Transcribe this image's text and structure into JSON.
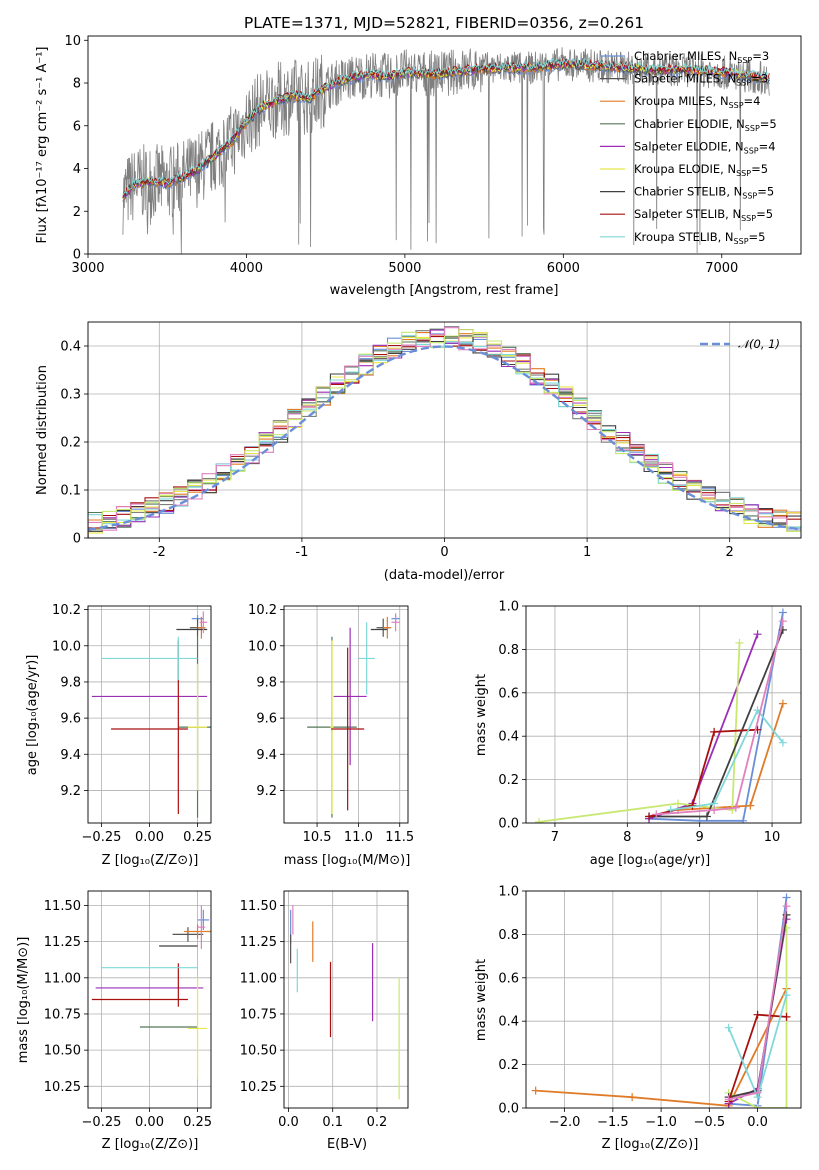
{
  "colors": [
    "#6a8fd8",
    "#7f7f7f",
    "#e07b28",
    "#55775a",
    "#9b2fb8",
    "#e8e84a",
    "#404040",
    "#a81010",
    "#80d8d8",
    "#e080c0",
    "#c8e870"
  ],
  "chart_data": [
    {
      "id": "spectrum",
      "type": "line",
      "title": "PLATE=1371, MJD=52821, FIBERID=0356, z=0.261",
      "xlabel": "wavelength [Angstrom, rest frame]",
      "ylabel": "Flux [fλ10⁻¹⁷ erg cm⁻² s⁻¹ A⁻¹]",
      "xlim": [
        3000,
        7500
      ],
      "ylim": [
        0,
        10.2
      ],
      "xticks": [
        3000,
        4000,
        5000,
        6000,
        7000
      ],
      "yticks": [
        0,
        2,
        4,
        6,
        8,
        10
      ],
      "data_range": [
        3220,
        7300
      ],
      "legend_position": "upper right",
      "legend": [
        {
          "label": "Chabrier MILES, N_SSP=3",
          "color": "#6a8fd8"
        },
        {
          "label": "Salpeter MILES, N_SSP=3",
          "color": "#555555"
        },
        {
          "label": "Kroupa MILES, N_SSP=4",
          "color": "#e07b28"
        },
        {
          "label": "Chabrier ELODIE, N_SSP=5",
          "color": "#55775a"
        },
        {
          "label": "Salpeter ELODIE, N_SSP=4",
          "color": "#9b2fb8"
        },
        {
          "label": "Kroupa ELODIE, N_SSP=5",
          "color": "#e8e84a"
        },
        {
          "label": "Chabrier STELIB, N_SSP=5",
          "color": "#404040"
        },
        {
          "label": "Salpeter STELIB, N_SSP=5",
          "color": "#a81010"
        },
        {
          "label": "Kroupa STELIB, N_SSP=5",
          "color": "#80d8d8"
        }
      ],
      "legend_texts": [
        {
          "pre": "Chabrier MILES, N",
          "sub": "SSP",
          "post": "=3"
        },
        {
          "pre": "Salpeter MILES, N",
          "sub": "SSP",
          "post": "=3"
        },
        {
          "pre": "Kroupa MILES, N",
          "sub": "SSP",
          "post": "=4"
        },
        {
          "pre": "Chabrier ELODIE, N",
          "sub": "SSP",
          "post": "=5"
        },
        {
          "pre": "Salpeter ELODIE, N",
          "sub": "SSP",
          "post": "=4"
        },
        {
          "pre": "Kroupa ELODIE, N",
          "sub": "SSP",
          "post": "=5"
        },
        {
          "pre": "Chabrier STELIB, N",
          "sub": "SSP",
          "post": "=5"
        },
        {
          "pre": "Salpeter STELIB, N",
          "sub": "SSP",
          "post": "=5"
        },
        {
          "pre": "Kroupa STELIB, N",
          "sub": "SSP",
          "post": "=5"
        }
      ],
      "model_curve": {
        "x": [
          3220,
          3300,
          3400,
          3500,
          3600,
          3700,
          3800,
          3900,
          4000,
          4100,
          4200,
          4300,
          4400,
          4500,
          4600,
          4700,
          4800,
          4900,
          5000,
          5200,
          5400,
          5600,
          5800,
          6000,
          6200,
          6400,
          6600,
          6800,
          7000,
          7200,
          7300
        ],
        "y": [
          2.7,
          3.3,
          3.4,
          3.3,
          3.6,
          4.0,
          4.6,
          5.2,
          6.2,
          6.9,
          7.2,
          7.4,
          7.3,
          7.8,
          8.1,
          8.3,
          8.4,
          8.3,
          8.5,
          8.4,
          8.6,
          8.7,
          8.7,
          8.9,
          8.8,
          8.7,
          8.6,
          8.6,
          8.5,
          8.3,
          8.2
        ]
      }
    },
    {
      "id": "residuals",
      "type": "histogram",
      "xlabel": "(data-model)/error",
      "ylabel": "Normed distribution",
      "xlim": [
        -2.5,
        2.5
      ],
      "ylim": [
        0,
        0.45
      ],
      "xticks": [
        -2,
        -1,
        0,
        1,
        2
      ],
      "yticks": [
        0.0,
        0.1,
        0.2,
        0.3,
        0.4
      ],
      "bin_width": 0.1,
      "bin_start": -2.5,
      "bin_count": 50,
      "legend_position": "upper right",
      "legend": [
        {
          "label": "𝒩(0, 1)",
          "color": "#6a8fd8",
          "style": "dashed"
        }
      ],
      "reference_curve": "normal(0,1)"
    },
    {
      "id": "age-vs-z",
      "type": "errorbar",
      "xlabel": "Z [log₁₀(Z/Z⊙)]",
      "ylabel": "age  [log₁₀(age/yr)]",
      "xlim": [
        -0.32,
        0.32
      ],
      "ylim": [
        9.02,
        10.22
      ],
      "xticks": [
        -0.25,
        0.0,
        0.25
      ],
      "xtick_labels": [
        "−0.25",
        "0.00",
        "0.25"
      ],
      "yticks": [
        9.2,
        9.4,
        9.6,
        9.8,
        10.0,
        10.2
      ],
      "ytick_labels": [
        "9.2",
        "9.4",
        "9.6",
        "9.8",
        "10.0",
        "10.2"
      ],
      "points": [
        {
          "x": 0.25,
          "y": 10.15,
          "xerr": 0.03,
          "yerr": 0.02,
          "color": "#6a8fd8"
        },
        {
          "x": 0.25,
          "y": 10.1,
          "xerr": 0.04,
          "yerr": 0.05,
          "color": "#555555"
        },
        {
          "x": 0.27,
          "y": 10.1,
          "xerr": 0.02,
          "yerr": 0.06,
          "color": "#e07b28"
        },
        {
          "x": 0.25,
          "y": 9.55,
          "xerr": 0.1,
          "yerr": 0.5,
          "color": "#55775a"
        },
        {
          "x": 0.0,
          "y": 9.72,
          "xerr": 0.3,
          "yerr": 0.0,
          "color": "#9b2fb8"
        },
        {
          "x": 0.25,
          "y": 9.55,
          "xerr": 0.05,
          "yerr": 0.35,
          "color": "#e8e84a"
        },
        {
          "x": 0.22,
          "y": 10.09,
          "xerr": 0.08,
          "yerr": 0.0,
          "color": "#404040"
        },
        {
          "x": 0.0,
          "y": 9.54,
          "xerr": 0.2,
          "yerr": 0.0,
          "color": "#a81010"
        },
        {
          "x": 0.15,
          "y": 9.55,
          "xerr": 0.0,
          "yerr": 0.48,
          "color": "#a81010"
        },
        {
          "x": 0.0,
          "y": 9.93,
          "xerr": 0.25,
          "yerr": 0.0,
          "color": "#80d8d8"
        },
        {
          "x": 0.15,
          "y": 9.93,
          "xerr": 0.0,
          "yerr": 0.12,
          "color": "#80d8d8"
        },
        {
          "x": 0.28,
          "y": 10.13,
          "xerr": 0.02,
          "yerr": 0.06,
          "color": "#e080c0"
        }
      ]
    },
    {
      "id": "age-vs-mass",
      "type": "errorbar",
      "xlabel": "mass [log₁₀(M/M⊙)]",
      "ylabel": "",
      "xlim": [
        10.1,
        11.6
      ],
      "ylim": [
        9.02,
        10.22
      ],
      "xticks": [
        10.5,
        11.0,
        11.5
      ],
      "xtick_labels": [
        "10.5",
        "11.0",
        "11.5"
      ],
      "yticks": [
        9.2,
        9.4,
        9.6,
        9.8,
        10.0,
        10.2
      ],
      "ytick_labels": [
        "9.2",
        "9.4",
        "9.6",
        "9.8",
        "10.0",
        "10.2"
      ],
      "points": [
        {
          "x": 11.45,
          "y": 10.15,
          "xerr": 0.05,
          "yerr": 0.02,
          "color": "#6a8fd8"
        },
        {
          "x": 11.3,
          "y": 10.1,
          "xerr": 0.08,
          "yerr": 0.05,
          "color": "#555555"
        },
        {
          "x": 11.35,
          "y": 10.1,
          "xerr": 0.05,
          "yerr": 0.06,
          "color": "#e07b28"
        },
        {
          "x": 10.68,
          "y": 9.55,
          "xerr": 0.3,
          "yerr": 0.5,
          "color": "#55775a"
        },
        {
          "x": 10.9,
          "y": 9.72,
          "xerr": 0.2,
          "yerr": 0.38,
          "color": "#9b2fb8"
        },
        {
          "x": 10.68,
          "y": 9.55,
          "xerr": 0.02,
          "yerr": 0.48,
          "color": "#e8e84a"
        },
        {
          "x": 11.25,
          "y": 10.09,
          "xerr": 0.1,
          "yerr": 0.0,
          "color": "#404040"
        },
        {
          "x": 10.87,
          "y": 9.54,
          "xerr": 0.2,
          "yerr": 0.45,
          "color": "#a81010"
        },
        {
          "x": 11.1,
          "y": 9.93,
          "xerr": 0.1,
          "yerr": 0.2,
          "color": "#80d8d8"
        },
        {
          "x": 11.45,
          "y": 10.13,
          "xerr": 0.05,
          "yerr": 0.05,
          "color": "#e080c0"
        }
      ]
    },
    {
      "id": "weight-vs-age",
      "type": "line",
      "xlabel": "age  [log₁₀(age/yr)]",
      "ylabel": "mass weight",
      "xlim": [
        6.6,
        10.4
      ],
      "ylim": [
        0,
        1
      ],
      "xticks": [
        7,
        8,
        9,
        10
      ],
      "xtick_labels": [
        "7",
        "8",
        "9",
        "10"
      ],
      "yticks": [
        0.0,
        0.2,
        0.4,
        0.6,
        0.8,
        1.0
      ],
      "ytick_labels": [
        "0.0",
        "0.2",
        "0.4",
        "0.6",
        "0.8",
        "1.0"
      ],
      "series": [
        {
          "color": "#6a8fd8",
          "x": [
            8.3,
            9.0,
            9.6,
            10.15
          ],
          "y": [
            0.02,
            0.01,
            0.01,
            0.97
          ]
        },
        {
          "color": "#e07b28",
          "x": [
            8.7,
            9.7,
            10.15
          ],
          "y": [
            0.06,
            0.08,
            0.55
          ]
        },
        {
          "color": "#9b2fb8",
          "x": [
            8.3,
            8.9,
            9.8
          ],
          "y": [
            0.02,
            0.09,
            0.87
          ]
        },
        {
          "color": "#c8e870",
          "x": [
            6.78,
            8.7,
            9.45,
            9.55
          ],
          "y": [
            0.005,
            0.09,
            0.06,
            0.83
          ]
        },
        {
          "color": "#404040",
          "x": [
            8.3,
            9.1,
            10.15
          ],
          "y": [
            0.03,
            0.03,
            0.89
          ]
        },
        {
          "color": "#a81010",
          "x": [
            8.3,
            8.9,
            9.2,
            9.8
          ],
          "y": [
            0.03,
            0.08,
            0.42,
            0.43
          ]
        },
        {
          "color": "#80d8d8",
          "x": [
            8.6,
            9.2,
            9.8,
            10.15
          ],
          "y": [
            0.06,
            0.09,
            0.52,
            0.37
          ]
        },
        {
          "color": "#e080c0",
          "x": [
            8.4,
            9.2,
            9.5,
            10.15
          ],
          "y": [
            0.04,
            0.06,
            0.07,
            0.93
          ]
        }
      ]
    },
    {
      "id": "mass-vs-z",
      "type": "errorbar",
      "xlabel": "Z [log₁₀(Z/Z⊙)]",
      "ylabel": "mass [log₁₀(M/M⊙)]",
      "xlim": [
        -0.32,
        0.32
      ],
      "ylim": [
        10.1,
        11.6
      ],
      "xticks": [
        -0.25,
        0.0,
        0.25
      ],
      "xtick_labels": [
        "−0.25",
        "0.00",
        "0.25"
      ],
      "yticks": [
        10.25,
        10.5,
        10.75,
        11.0,
        11.25,
        11.5
      ],
      "ytick_labels": [
        "10.25",
        "10.50",
        "10.75",
        "11.00",
        "11.25",
        "11.50"
      ],
      "points": [
        {
          "x": 0.28,
          "y": 11.4,
          "xerr": 0.03,
          "yerr": 0.07,
          "color": "#6a8fd8"
        },
        {
          "x": 0.2,
          "y": 11.3,
          "xerr": 0.08,
          "yerr": 0.05,
          "color": "#555555"
        },
        {
          "x": 0.25,
          "y": 11.32,
          "xerr": 0.07,
          "yerr": 0.05,
          "color": "#e07b28"
        },
        {
          "x": 0.1,
          "y": 10.66,
          "xerr": 0.15,
          "yerr": 0.0,
          "color": "#55775a"
        },
        {
          "x": 0.0,
          "y": 10.93,
          "xerr": 0.28,
          "yerr": 0.0,
          "color": "#9b2fb8"
        },
        {
          "x": 0.25,
          "y": 10.65,
          "xerr": 0.05,
          "yerr": 0.35,
          "color": "#e8e84a"
        },
        {
          "x": 0.15,
          "y": 11.22,
          "xerr": 0.1,
          "yerr": 0.0,
          "color": "#404040"
        },
        {
          "x": -0.05,
          "y": 10.85,
          "xerr": 0.25,
          "yerr": 0.0,
          "color": "#a81010"
        },
        {
          "x": 0.15,
          "y": 10.95,
          "xerr": 0.0,
          "yerr": 0.15,
          "color": "#a81010"
        },
        {
          "x": 0.0,
          "y": 11.07,
          "xerr": 0.25,
          "yerr": 0.0,
          "color": "#80d8d8"
        },
        {
          "x": 0.27,
          "y": 11.35,
          "xerr": 0.02,
          "yerr": 0.15,
          "color": "#e080c0"
        }
      ]
    },
    {
      "id": "mass-vs-ebv",
      "type": "errorbar",
      "xlabel": "E(B-V)",
      "ylabel": "",
      "xlim": [
        -0.01,
        0.27
      ],
      "ylim": [
        10.1,
        11.6
      ],
      "xticks": [
        0.0,
        0.1,
        0.2
      ],
      "xtick_labels": [
        "0.0",
        "0.1",
        "0.2"
      ],
      "yticks": [
        10.25,
        10.5,
        10.75,
        11.0,
        11.25,
        11.5
      ],
      "ytick_labels": [
        "10.25",
        "10.50",
        "10.75",
        "11.00",
        "11.25",
        "11.50"
      ],
      "points": [
        {
          "x": 0.005,
          "y": 11.35,
          "xerr": 0.0,
          "yerr": 0.12,
          "color": "#6a8fd8"
        },
        {
          "x": 0.005,
          "y": 11.2,
          "xerr": 0.0,
          "yerr": 0.1,
          "color": "#555555"
        },
        {
          "x": 0.055,
          "y": 11.25,
          "xerr": 0.0,
          "yerr": 0.14,
          "color": "#e07b28"
        },
        {
          "x": 0.19,
          "y": 10.97,
          "xerr": 0.0,
          "yerr": 0.27,
          "color": "#9b2fb8"
        },
        {
          "x": 0.25,
          "y": 10.58,
          "xerr": 0.0,
          "yerr": 0.42,
          "color": "#c8e870"
        },
        {
          "x": 0.095,
          "y": 10.85,
          "xerr": 0.0,
          "yerr": 0.26,
          "color": "#a81010"
        },
        {
          "x": 0.02,
          "y": 11.05,
          "xerr": 0.0,
          "yerr": 0.15,
          "color": "#80d8d8"
        },
        {
          "x": 0.01,
          "y": 11.4,
          "xerr": 0.0,
          "yerr": 0.1,
          "color": "#e080c0"
        }
      ]
    },
    {
      "id": "weight-vs-z",
      "type": "line",
      "xlabel": "Z [log₁₀(Z/Z⊙)]",
      "ylabel": "mass weight",
      "xlim": [
        -2.4,
        0.45
      ],
      "ylim": [
        0,
        1
      ],
      "xticks": [
        -2.0,
        -1.5,
        -1.0,
        -0.5,
        0.0
      ],
      "xtick_labels": [
        "−2.0",
        "−1.5",
        "−1.0",
        "−0.5",
        "0.0"
      ],
      "yticks": [
        0.0,
        0.2,
        0.4,
        0.6,
        0.8,
        1.0
      ],
      "ytick_labels": [
        "0.0",
        "0.2",
        "0.4",
        "0.6",
        "0.8",
        "1.0"
      ],
      "series": [
        {
          "color": "#6a8fd8",
          "x": [
            -0.3,
            0.0,
            0.3
          ],
          "y": [
            0.02,
            0.01,
            0.97
          ]
        },
        {
          "color": "#e07b28",
          "x": [
            -2.3,
            -1.3,
            -0.3,
            0.3
          ],
          "y": [
            0.08,
            0.05,
            0.01,
            0.55
          ]
        },
        {
          "color": "#9b2fb8",
          "x": [
            -0.3,
            0.0,
            0.3
          ],
          "y": [
            0.02,
            0.09,
            0.87
          ]
        },
        {
          "color": "#c8e870",
          "x": [
            -0.3,
            0.0,
            0.3,
            0.3
          ],
          "y": [
            0.07,
            0.0,
            0.0,
            0.83
          ]
        },
        {
          "color": "#404040",
          "x": [
            -0.3,
            0.0,
            0.3
          ],
          "y": [
            0.05,
            0.08,
            0.89
          ]
        },
        {
          "color": "#a81010",
          "x": [
            -0.3,
            0.0,
            0.3
          ],
          "y": [
            0.03,
            0.43,
            0.42
          ]
        },
        {
          "color": "#80d8d8",
          "x": [
            -0.3,
            0.0,
            0.3
          ],
          "y": [
            0.37,
            0.05,
            0.52
          ]
        },
        {
          "color": "#e080c0",
          "x": [
            -0.3,
            0.0,
            0.3
          ],
          "y": [
            0.04,
            0.07,
            0.93
          ]
        }
      ]
    }
  ]
}
